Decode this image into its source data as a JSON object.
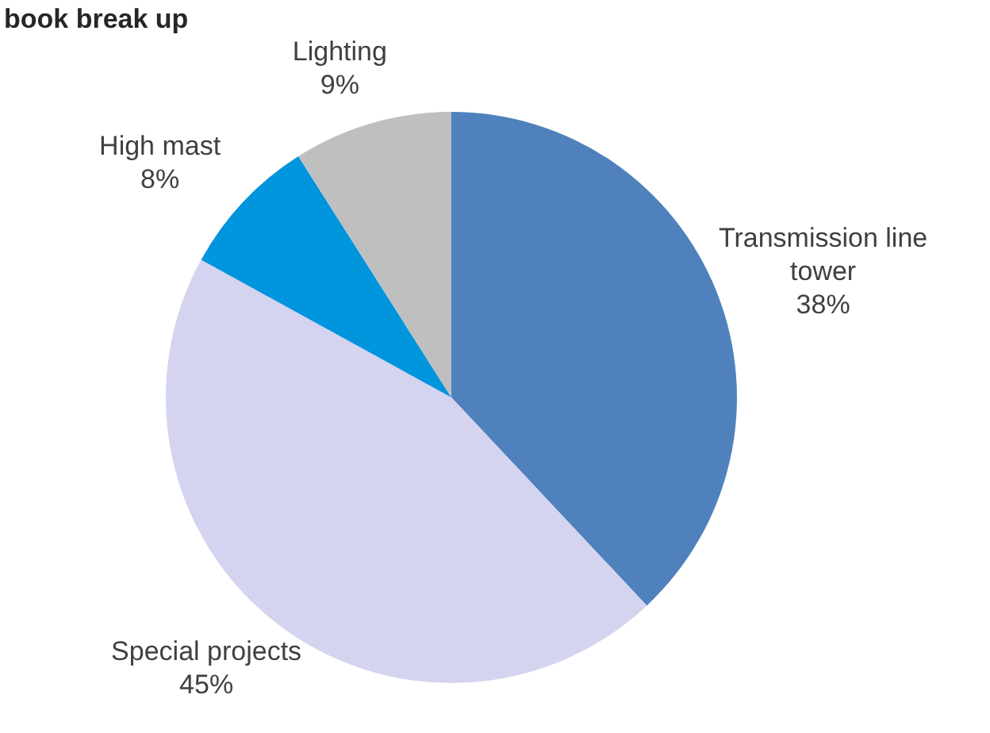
{
  "chart_data": {
    "type": "pie",
    "title": "book break up",
    "categories": [
      "Transmission line tower",
      "Special projects",
      "High mast",
      "Lighting"
    ],
    "values": [
      38,
      45,
      8,
      9
    ],
    "colors": [
      "#4f81bd",
      "#d4d4f0",
      "#0095dc",
      "#bfbfbf"
    ],
    "value_labels": [
      "38%",
      "45%",
      "8%",
      "9%"
    ]
  }
}
